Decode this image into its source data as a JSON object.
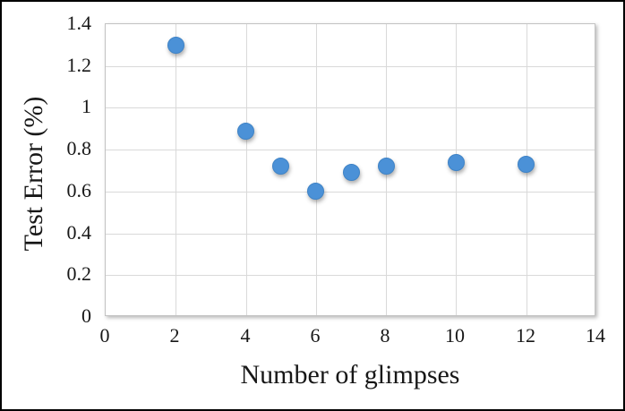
{
  "figure": {
    "background": "#ffffff",
    "border_color": "#000000"
  },
  "chart_data": {
    "type": "scatter",
    "title": "",
    "xlabel": "Number of glimpses",
    "ylabel": "Test Error (%)",
    "x": [
      2,
      4,
      5,
      6,
      7,
      8,
      10,
      12
    ],
    "y": [
      1.3,
      0.89,
      0.72,
      0.6,
      0.69,
      0.72,
      0.74,
      0.73
    ],
    "xlim": [
      0,
      14
    ],
    "ylim": [
      0,
      1.4
    ],
    "xticks": [
      0,
      2,
      4,
      6,
      8,
      10,
      12,
      14
    ],
    "yticks": [
      0,
      0.2,
      0.4,
      0.6,
      0.8,
      1,
      1.2,
      1.4
    ],
    "xtick_labels": [
      "0",
      "2",
      "4",
      "6",
      "8",
      "10",
      "12",
      "14"
    ],
    "ytick_labels": [
      "0",
      "0.2",
      "0.4",
      "0.6",
      "0.8",
      "1",
      "1.2",
      "1.4"
    ],
    "grid": true,
    "legend": "none",
    "colors": {
      "marker": "#4b91d7",
      "marker_edge": "#3f83c6",
      "gridline": "#d9d9d9",
      "plot_border": "#c3c3c3",
      "text": "#171717"
    }
  }
}
